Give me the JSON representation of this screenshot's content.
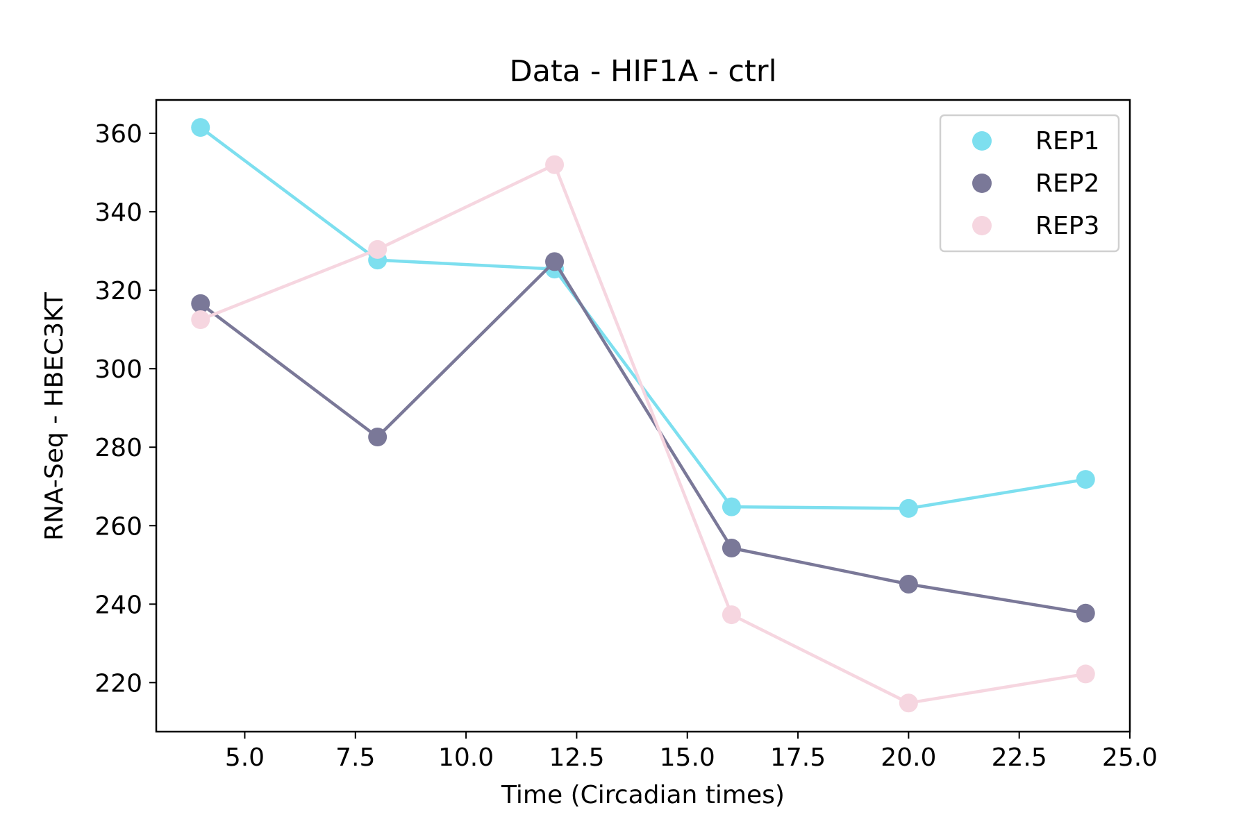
{
  "chart_data": {
    "type": "line",
    "title": "Data - HIF1A - ctrl",
    "xlabel": "Time (Circadian times)",
    "ylabel": "RNA-Seq - HBEC3KT",
    "xlim": [
      3.0,
      25.0
    ],
    "ylim": [
      207.5,
      368.5
    ],
    "x_ticks": [
      5.0,
      7.5,
      10.0,
      12.5,
      15.0,
      17.5,
      20.0,
      22.5,
      25.0
    ],
    "x_tick_labels": [
      "5.0",
      "7.5",
      "10.0",
      "12.5",
      "15.0",
      "17.5",
      "20.0",
      "22.5",
      "25.0"
    ],
    "y_ticks": [
      220,
      240,
      260,
      280,
      300,
      320,
      340,
      360
    ],
    "y_tick_labels": [
      "220",
      "240",
      "260",
      "280",
      "300",
      "320",
      "340",
      "360"
    ],
    "grid": false,
    "legend_position": "top-right",
    "x": [
      4,
      8,
      12,
      16,
      20,
      24
    ],
    "series": [
      {
        "name": "REP1",
        "color": "#7ddfef",
        "values": [
          361.5,
          327.7,
          325.4,
          264.8,
          264.4,
          271.8
        ]
      },
      {
        "name": "REP2",
        "color": "#7a7898",
        "values": [
          316.6,
          282.6,
          327.3,
          254.3,
          245.1,
          237.7
        ]
      },
      {
        "name": "REP3",
        "color": "#f6d6e0",
        "values": [
          312.5,
          330.4,
          352.0,
          237.3,
          214.8,
          222.2
        ]
      }
    ]
  }
}
